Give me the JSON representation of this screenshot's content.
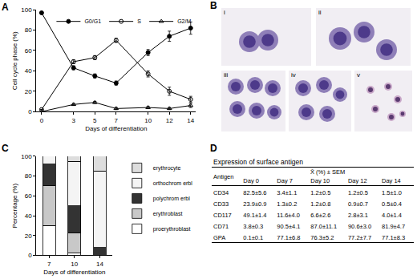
{
  "chart_data": [
    {
      "type": "line",
      "panel": "A",
      "x": [
        0,
        3,
        5,
        7,
        10,
        12,
        14
      ],
      "xlabel": "Days of differentiation",
      "ylabel": "Cell cycle phase (%)",
      "xlim": [
        -0.5,
        14.5
      ],
      "xticks": [
        0,
        3,
        5,
        7,
        10,
        12,
        14
      ],
      "ylim": [
        0,
        100
      ],
      "yticks": [
        0,
        20,
        40,
        60,
        80,
        100
      ],
      "legend": "top right",
      "series": [
        {
          "name": "G0/G1",
          "color": "#000000",
          "marker": "circle",
          "values": [
            97,
            43,
            35,
            28,
            58,
            74,
            82
          ],
          "errors": [
            0,
            2,
            2,
            2,
            3,
            5,
            6
          ]
        },
        {
          "name": "S",
          "color": "#000000",
          "marker": "circle-open",
          "values": [
            2,
            49,
            53,
            70,
            37,
            20,
            12
          ],
          "errors": [
            0,
            2,
            2,
            2,
            3,
            4,
            3
          ]
        },
        {
          "name": "G2/M",
          "color": "#000000",
          "marker": "triangle-up-open",
          "values": [
            0,
            7,
            9,
            3,
            4,
            3,
            6
          ],
          "errors": [
            0,
            1,
            1,
            1,
            1,
            1,
            2
          ]
        }
      ]
    },
    {
      "type": "bar",
      "panel": "C",
      "stacked": true,
      "categories": [
        "7",
        "10",
        "14"
      ],
      "xlabel": "Days of differentiation",
      "ylabel": "Percentage (%)",
      "ylim": [
        0,
        100
      ],
      "yticks": [
        0,
        20,
        40,
        60,
        80,
        100
      ],
      "legend": "right",
      "series": [
        {
          "name": "proerythroblast",
          "color": "#ffffff",
          "values": [
            30,
            2,
            0
          ]
        },
        {
          "name": "erythroblast",
          "color": "#c8c8c8",
          "values": [
            40,
            21,
            0
          ]
        },
        {
          "name": "polychrom erbl",
          "color": "#333333",
          "values": [
            22,
            27,
            8
          ]
        },
        {
          "name": "orthochrom erbl",
          "color": "#f4f4f4",
          "values": [
            8,
            45,
            77
          ]
        },
        {
          "name": "erythrocyte",
          "color": "#dddddd",
          "values": [
            0,
            5,
            15
          ]
        }
      ]
    }
  ],
  "images": {
    "panel": "B",
    "labels": [
      "i",
      "ii",
      "iii",
      "iv",
      "v"
    ]
  },
  "table": {
    "panel": "D",
    "title": "Expression of surface antigen",
    "header": {
      "antigen": "Antigen",
      "measure": "X̄ (%) ± SEM",
      "days": [
        "Day 0",
        "Day 7",
        "Day 10",
        "Day 12",
        "Day 14"
      ]
    },
    "rows": [
      [
        "CD34",
        "82.5±5.6",
        "3.4±1.1",
        "1.2±0.5",
        "1.2±0.5",
        "1.5±1.0"
      ],
      [
        "CD33",
        "23.9±0.9",
        "1.3±0.2",
        "1.2±0.8",
        "0.9±0.7",
        "0.5±0.4"
      ],
      [
        "CD117",
        "49.1±1.4",
        "11.6±4.0",
        "6.6±2.6",
        "2.8±3.1",
        "4.0±1.4"
      ],
      [
        "CD71",
        "3.8±0.3",
        "90.5±4.1",
        "87.0±11.1",
        "90.6±3.0",
        "81.9±4.7"
      ],
      [
        "GPA",
        "0.1±0.1",
        "77.1±6.8",
        "76.3±5.2",
        "77.2±7.7",
        "77.1±8.3"
      ]
    ]
  }
}
